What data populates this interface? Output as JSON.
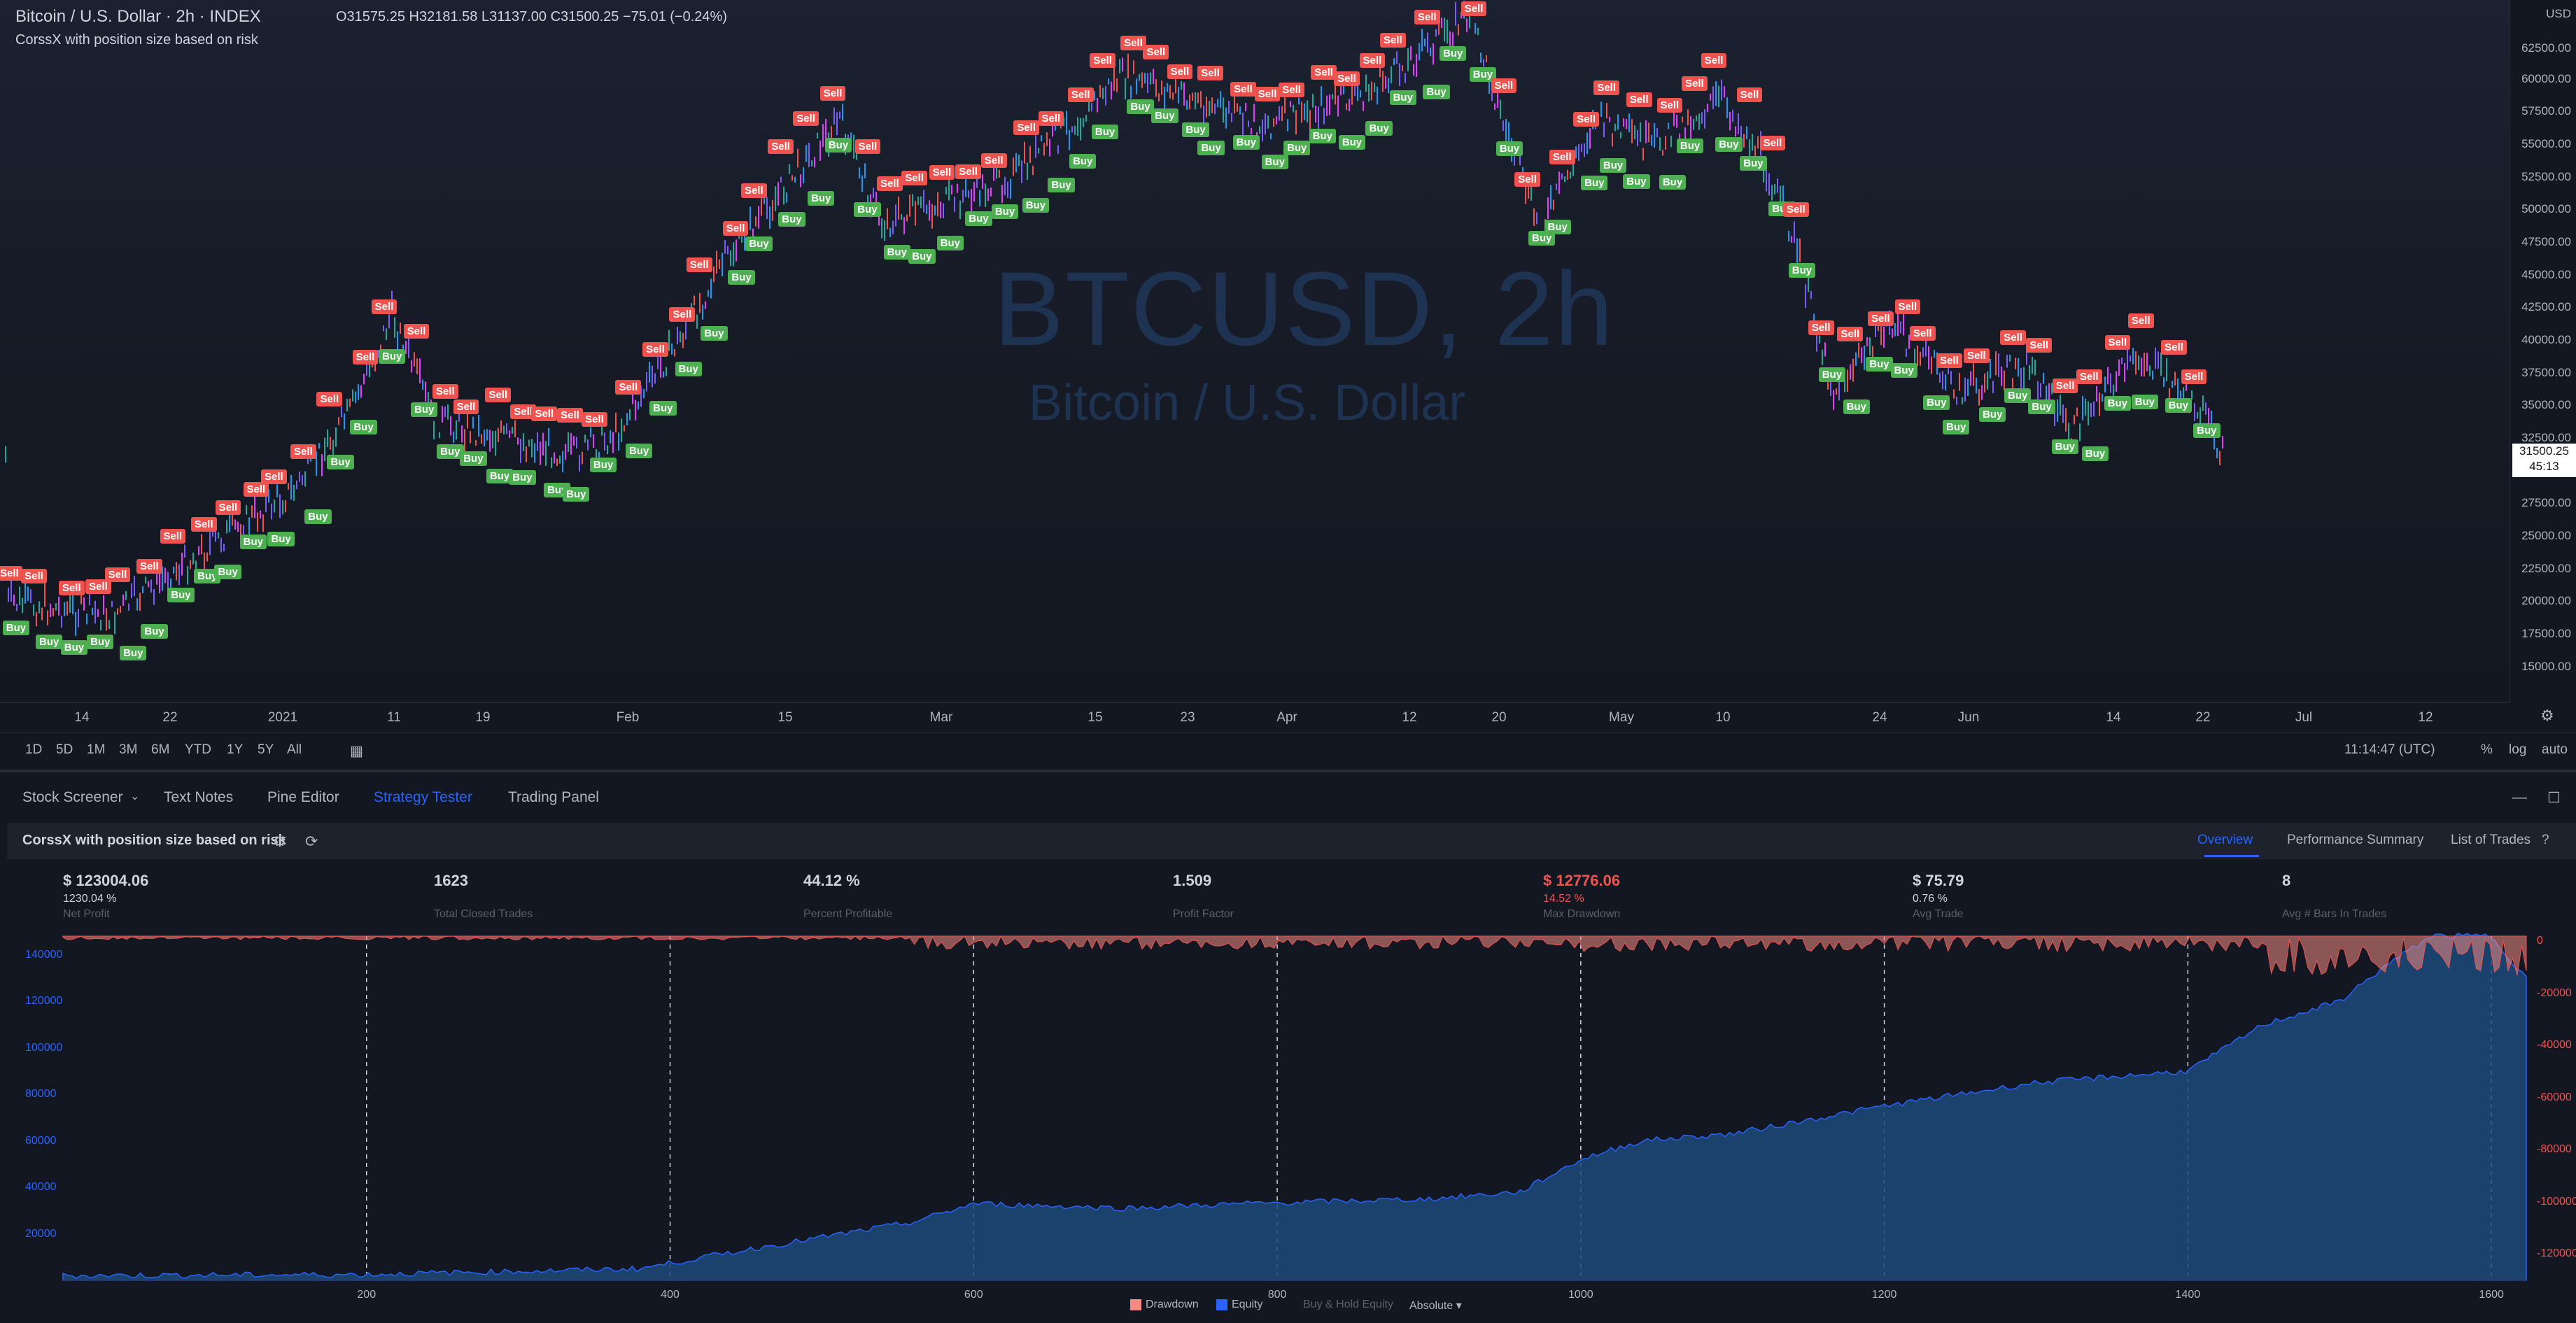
{
  "symbol": {
    "title": "Bitcoin / U.S. Dollar · 2h · INDEX",
    "ohlc": "O31575.25 H32181.58 L31137.00 C31500.25 −75.01 (−0.24%)",
    "indicator": "CorssX with position size based on risk",
    "watermark_symbol": "BTCUSD, 2h",
    "watermark_name": "Bitcoin / U.S. Dollar",
    "currency": "USD",
    "last_price": "31500.25",
    "countdown": "45:13"
  },
  "price_axis": [
    "62500.00",
    "60000.00",
    "57500.00",
    "55000.00",
    "52500.00",
    "50000.00",
    "47500.00",
    "45000.00",
    "42500.00",
    "40000.00",
    "37500.00",
    "35000.00",
    "32500.00",
    "27500.00",
    "25000.00",
    "22500.00",
    "20000.00",
    "17500.00",
    "15000.00"
  ],
  "time_axis": [
    "14",
    "22",
    "2021",
    "11",
    "19",
    "Feb",
    "15",
    "Mar",
    "15",
    "23",
    "Apr",
    "12",
    "20",
    "May",
    "10",
    "24",
    "Jun",
    "14",
    "22",
    "Jul",
    "12"
  ],
  "range_buttons": [
    "1D",
    "5D",
    "1M",
    "3M",
    "6M",
    "YTD",
    "1Y",
    "5Y",
    "All"
  ],
  "clock": "11:14:47 (UTC)",
  "scale_buttons": [
    "%",
    "log",
    "auto"
  ],
  "markers": {
    "sell": "Sell",
    "buy": "Buy"
  },
  "panel_tabs": [
    "Stock Screener",
    "Text Notes",
    "Pine Editor",
    "Strategy Tester",
    "Trading Panel"
  ],
  "strategy": {
    "name": "CorssX with position size based on risk",
    "tabs": [
      "Overview",
      "Performance Summary",
      "List of Trades"
    ]
  },
  "metrics": [
    {
      "value": "$ 123004.06",
      "sub": "1230.04 %",
      "label": "Net Profit"
    },
    {
      "value": "1623",
      "sub": "",
      "label": "Total Closed Trades"
    },
    {
      "value": "44.12 %",
      "sub": "",
      "label": "Percent Profitable"
    },
    {
      "value": "1.509",
      "sub": "",
      "label": "Profit Factor"
    },
    {
      "value": "$ 12776.06",
      "sub": "14.52 %",
      "label": "Max Drawdown",
      "negative": true
    },
    {
      "value": "$ 75.79",
      "sub": "0.76 %",
      "label": "Avg Trade"
    },
    {
      "value": "8",
      "sub": "",
      "label": "Avg # Bars In Trades"
    }
  ],
  "equity_left_axis": [
    "140000",
    "120000",
    "100000",
    "80000",
    "60000",
    "40000",
    "20000"
  ],
  "equity_right_axis": [
    "0",
    "-20000",
    "-40000",
    "-60000",
    "-80000",
    "-100000",
    "-120000"
  ],
  "equity_x_axis": [
    "200",
    "400",
    "600",
    "800",
    "1000",
    "1200",
    "1400",
    "1600"
  ],
  "equity_legend": [
    "Drawdown",
    "Equity",
    "Buy & Hold Equity",
    "Absolute"
  ],
  "colors": {
    "background": "#131722",
    "equity": "#2962ff",
    "drawdown": "#ef5350",
    "buy": "#4caf50",
    "sell": "#ef5350",
    "accent": "#2962ff"
  }
}
